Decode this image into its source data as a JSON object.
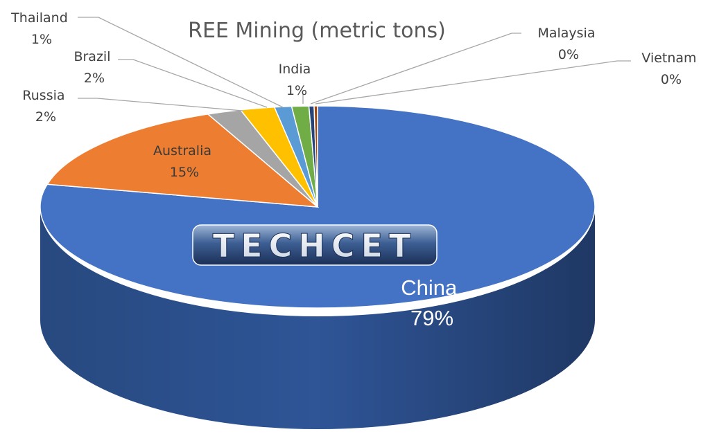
{
  "chart_data": {
    "type": "pie",
    "title": "REE Mining (metric tons)",
    "slices": [
      {
        "name": "China",
        "label": "79%",
        "value": 79,
        "color": "#4472c4"
      },
      {
        "name": "Australia",
        "label": "15%",
        "value": 15,
        "color": "#ed7d31"
      },
      {
        "name": "Russia",
        "label": "2%",
        "value": 2,
        "color": "#a5a5a5"
      },
      {
        "name": "Brazil",
        "label": "2%",
        "value": 2,
        "color": "#ffc000"
      },
      {
        "name": "Thailand",
        "label": "1%",
        "value": 1,
        "color": "#5b9bd5"
      },
      {
        "name": "India",
        "label": "1%",
        "value": 1,
        "color": "#70ad47"
      },
      {
        "name": "Malaysia",
        "label": "0%",
        "value": 0.3,
        "color": "#264478"
      },
      {
        "name": "Vietnam",
        "label": "0%",
        "value": 0.2,
        "color": "#9e480e"
      }
    ],
    "legend": "none",
    "style": "3d"
  },
  "watermark": {
    "text": "TECHCET"
  }
}
